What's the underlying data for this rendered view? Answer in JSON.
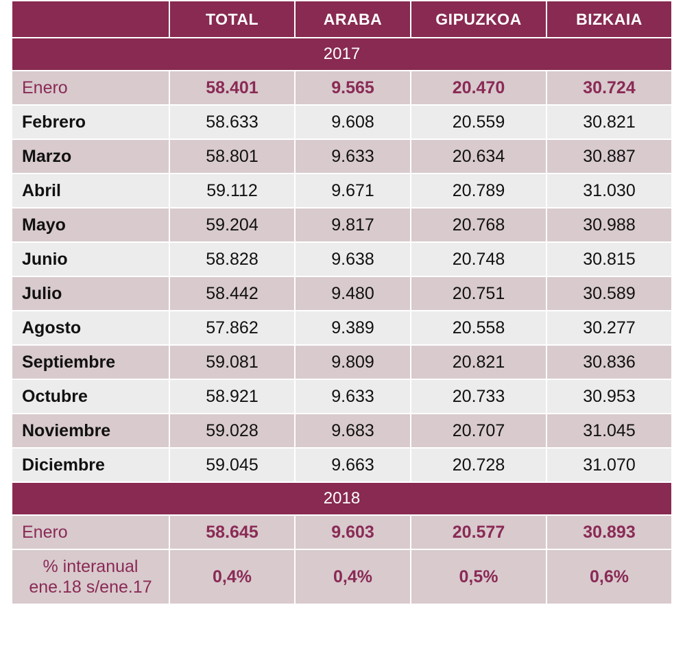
{
  "table": {
    "headers": [
      "",
      "TOTAL",
      "ARABA",
      "GIPUZKOA",
      "BIZKAIA"
    ],
    "year_2017": "2017",
    "rows_2017": [
      {
        "month": "Enero",
        "values": [
          "58.401",
          "9.565",
          "20.470",
          "30.724"
        ]
      },
      {
        "month": "Febrero",
        "values": [
          "58.633",
          "9.608",
          "20.559",
          "30.821"
        ]
      },
      {
        "month": "Marzo",
        "values": [
          "58.801",
          "9.633",
          "20.634",
          "30.887"
        ]
      },
      {
        "month": "Abril",
        "values": [
          "59.112",
          "9.671",
          "20.789",
          "31.030"
        ]
      },
      {
        "month": "Mayo",
        "values": [
          "59.204",
          "9.817",
          "20.768",
          "30.988"
        ]
      },
      {
        "month": "Junio",
        "values": [
          "58.828",
          "9.638",
          "20.748",
          "30.815"
        ]
      },
      {
        "month": "Julio",
        "values": [
          "58.442",
          "9.480",
          "20.751",
          "30.589"
        ]
      },
      {
        "month": "Agosto",
        "values": [
          "57.862",
          "9.389",
          "20.558",
          "30.277"
        ]
      },
      {
        "month": "Septiembre",
        "values": [
          "59.081",
          "9.809",
          "20.821",
          "30.836"
        ]
      },
      {
        "month": "Octubre",
        "values": [
          "58.921",
          "9.633",
          "20.733",
          "30.953"
        ]
      },
      {
        "month": "Noviembre",
        "values": [
          "59.028",
          "9.683",
          "20.707",
          "31.045"
        ]
      },
      {
        "month": "Diciembre",
        "values": [
          "59.045",
          "9.663",
          "20.728",
          "31.070"
        ]
      }
    ],
    "year_2018": "2018",
    "rows_2018": [
      {
        "month": "Enero",
        "values": [
          "58.645",
          "9.603",
          "20.577",
          "30.893"
        ]
      }
    ],
    "pct_row": {
      "label_line1": "% interanual",
      "label_line2": "ene.18 s/ene.17",
      "values": [
        "0,4%",
        "0,4%",
        "0,5%",
        "0,6%"
      ]
    }
  },
  "colors": {
    "header_bg": "#882a51",
    "row_dark": "#d8cacd",
    "row_light": "#ececec",
    "highlight_text": "#8a2a55"
  }
}
